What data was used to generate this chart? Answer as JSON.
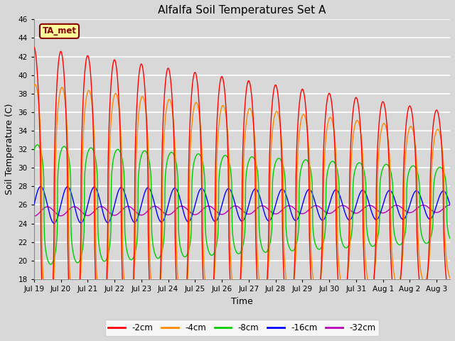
{
  "title": "Alfalfa Soil Temperatures Set A",
  "xlabel": "Time",
  "ylabel": "Soil Temperature (C)",
  "ylim": [
    18,
    46
  ],
  "yticks": [
    18,
    20,
    22,
    24,
    26,
    28,
    30,
    32,
    34,
    36,
    38,
    40,
    42,
    44,
    46
  ],
  "x_tick_labels": [
    "Jul 19",
    "Jul 20",
    "Jul 21",
    "Jul 22",
    "Jul 23",
    "Jul 24",
    "Jul 25",
    "Jul 26",
    "Jul 27",
    "Jul 28",
    "Jul 29",
    "Jul 30",
    "Jul 31",
    "Aug 1",
    "Aug 2",
    "Aug 3"
  ],
  "series_colors": [
    "#ff0000",
    "#ff8800",
    "#00cc00",
    "#0000ff",
    "#bb00bb"
  ],
  "series_labels": [
    "-2cm",
    "-4cm",
    "-8cm",
    "-16cm",
    "-32cm"
  ],
  "annotation_text": "TA_met",
  "annotation_color": "#880000",
  "annotation_bg": "#ffff99",
  "background_color": "#d8d8d8",
  "plot_bg_color": "#d8d8d8",
  "grid_color": "#ffffff",
  "n_points": 1440,
  "days": 15.5,
  "period_hours": 24
}
